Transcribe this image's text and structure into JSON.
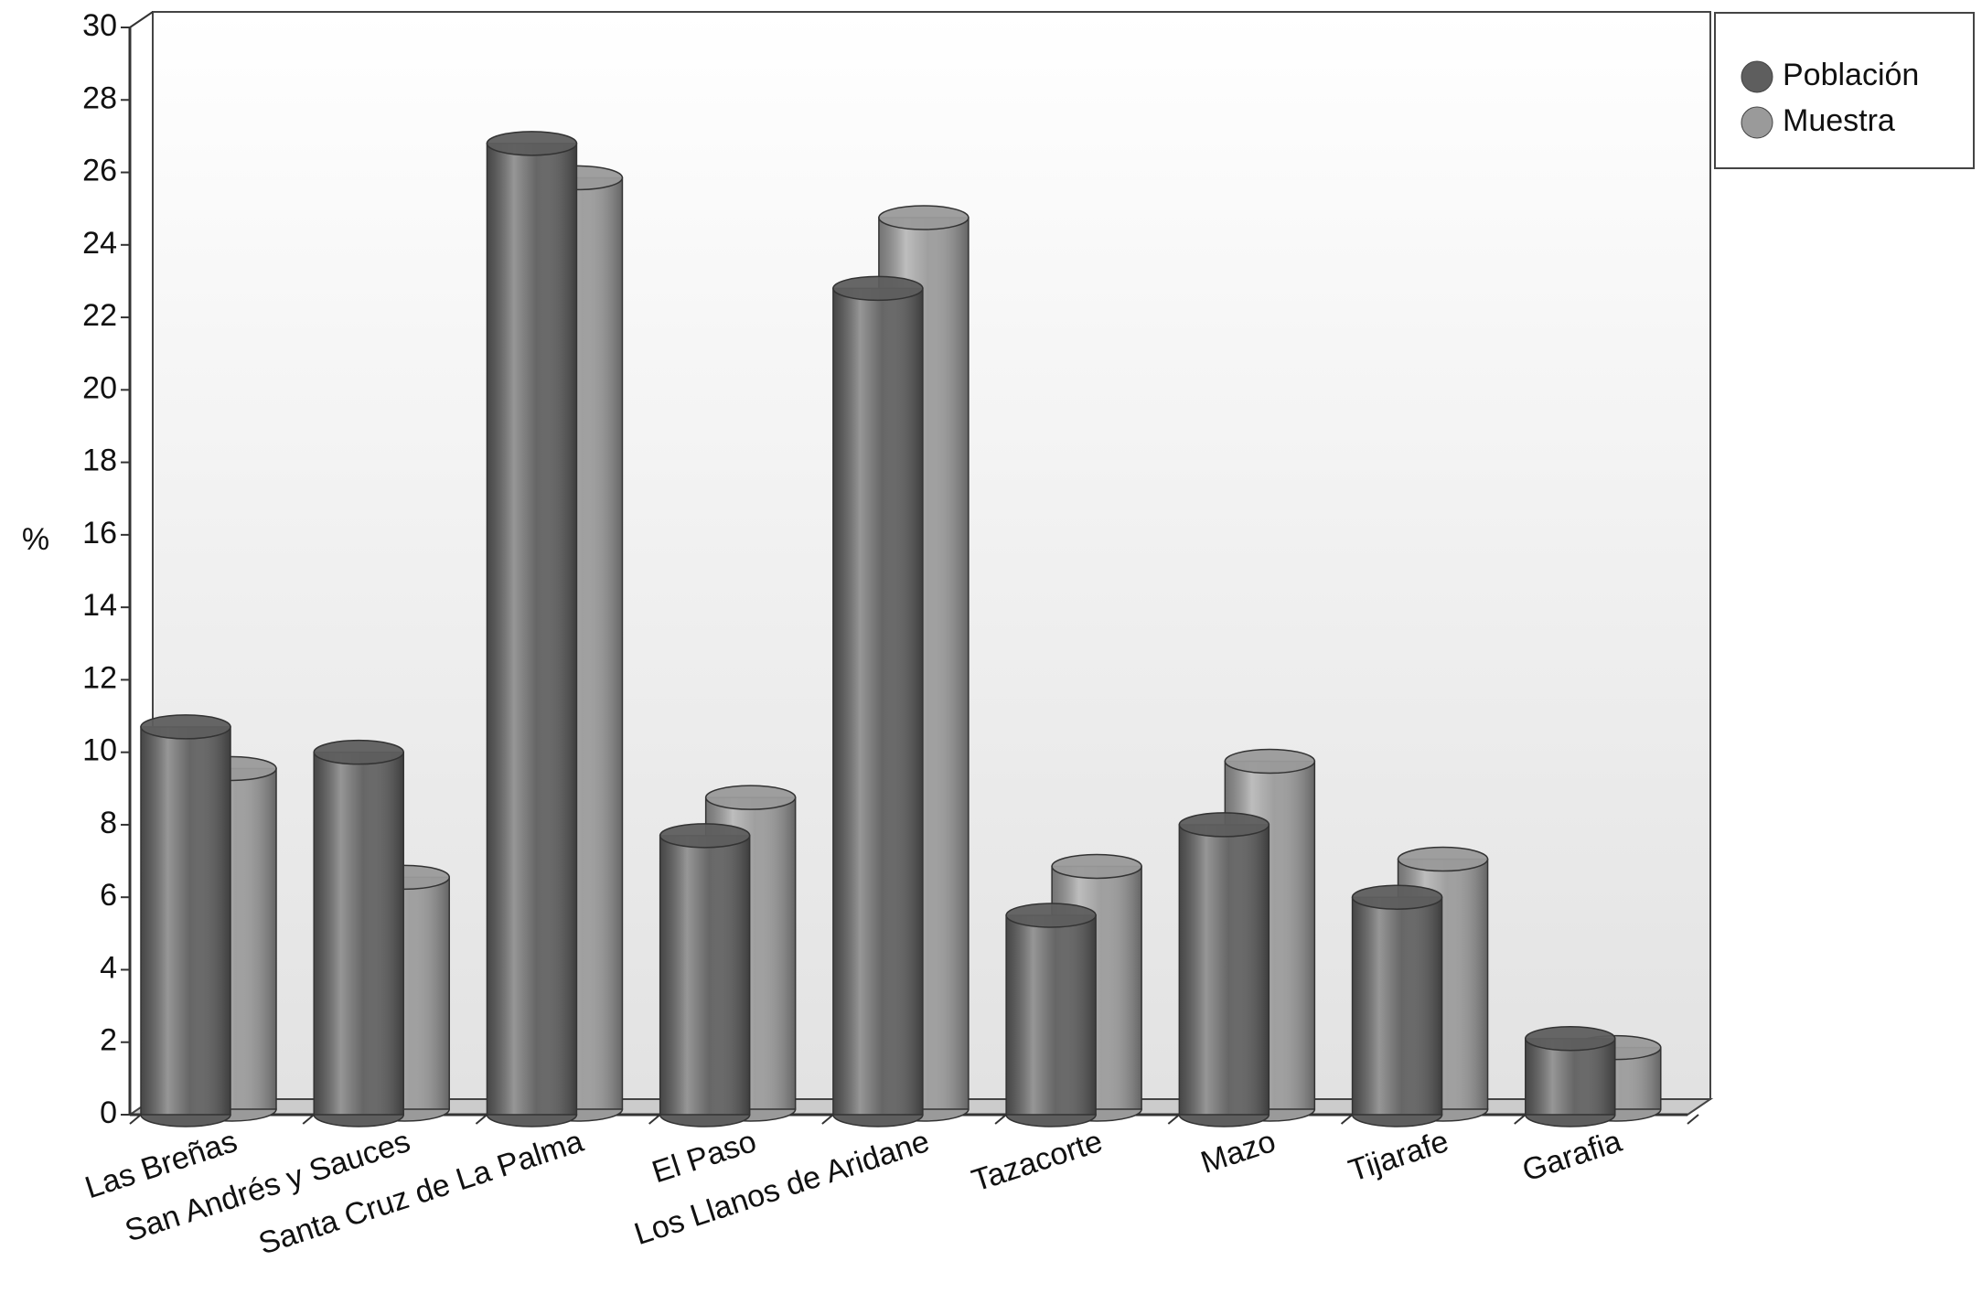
{
  "chart_data": {
    "type": "bar",
    "categories": [
      "Las Breñas",
      "San Andrés y Sauces",
      "Santa Cruz de La Palma",
      "El Paso",
      "Los Llanos de Aridane",
      "Tazacorte",
      "Mazo",
      "Tijarafe",
      "Garafia"
    ],
    "series": [
      {
        "name": "Población",
        "color": "#5e5e5e",
        "values": [
          10.7,
          10.0,
          26.8,
          7.7,
          22.8,
          5.5,
          8.0,
          6.0,
          2.1
        ]
      },
      {
        "name": "Muestra",
        "color": "#9a9a9a",
        "values": [
          9.4,
          6.4,
          25.7,
          8.6,
          24.6,
          6.7,
          9.6,
          6.9,
          1.7
        ]
      }
    ],
    "y_label": "%",
    "ylim": [
      0,
      30
    ],
    "yticks": [
      0,
      2,
      4,
      6,
      8,
      10,
      12,
      14,
      16,
      18,
      20,
      22,
      24,
      26,
      28,
      30
    ],
    "legend": "top-right"
  }
}
